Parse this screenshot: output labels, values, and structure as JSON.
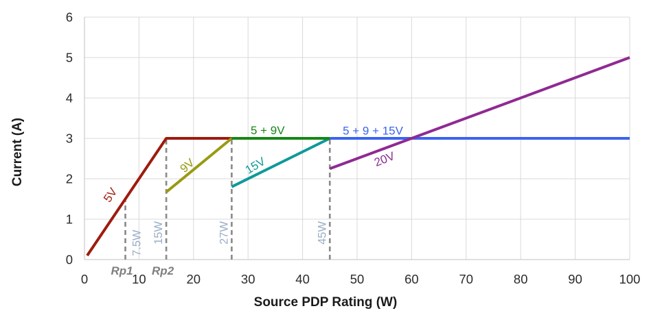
{
  "chart_data": {
    "type": "line",
    "title": "",
    "xlabel": "Source PDP Rating (W)",
    "ylabel": "Current (A)",
    "xlim": [
      0,
      100
    ],
    "ylim": [
      0,
      6
    ],
    "xticks": [
      0,
      10,
      20,
      30,
      40,
      50,
      60,
      70,
      80,
      90,
      100
    ],
    "yticks": [
      0,
      1,
      2,
      3,
      4,
      5,
      6
    ],
    "grid": true,
    "legend_position": "none (inline line labels)",
    "colors": {
      "grid": "#D8D8D8",
      "axis": "#C2C2C2",
      "tick_text": "#2b2b2b",
      "guide": "#8C8C8C",
      "guide_label": "#9AAEC6",
      "rp_label": "#7F7F7F",
      "v5": "#9E1B0E",
      "v9": "#9A9913",
      "v15": "#0F9999",
      "v20": "#8F2A93",
      "v5_9": "#168616",
      "v5_9_15": "#3A64F0"
    },
    "series": [
      {
        "name": "5V",
        "color": "#9E1B0E",
        "points": [
          [
            0.5,
            0.1
          ],
          [
            15,
            3
          ],
          [
            27,
            3
          ]
        ]
      },
      {
        "name": "9V",
        "color": "#9A9913",
        "points": [
          [
            15,
            1.67
          ],
          [
            27,
            3
          ]
        ]
      },
      {
        "name": "15V",
        "color": "#0F9999",
        "points": [
          [
            27,
            1.8
          ],
          [
            45,
            3
          ]
        ]
      },
      {
        "name": "5 + 9V",
        "color": "#168616",
        "points": [
          [
            27,
            3
          ],
          [
            45,
            3
          ]
        ]
      },
      {
        "name": "5 + 9 + 15V",
        "color": "#3A64F0",
        "points": [
          [
            45,
            3
          ],
          [
            100,
            3
          ]
        ]
      },
      {
        "name": "20V",
        "color": "#8F2A93",
        "points": [
          [
            45,
            2.25
          ],
          [
            100,
            5
          ]
        ]
      }
    ],
    "annotations": [
      {
        "text": "5V",
        "x": 4.7,
        "y": 1.6,
        "rotate": -56,
        "color": "#9E1B0E"
      },
      {
        "text": "9V",
        "x": 18.8,
        "y": 2.33,
        "rotate": -41,
        "color": "#9A9913"
      },
      {
        "text": "15V",
        "x": 31.3,
        "y": 2.33,
        "rotate": -31,
        "color": "#0F9999"
      },
      {
        "text": "20V",
        "x": 55.0,
        "y": 2.49,
        "rotate": -22,
        "color": "#8F2A93"
      },
      {
        "text": "5 + 9V",
        "x": 33.6,
        "y": 3.2,
        "rotate": 0,
        "color": "#168616"
      },
      {
        "text": "5 + 9 + 15V",
        "x": 52.9,
        "y": 3.19,
        "rotate": 0,
        "color": "#3A64F0"
      }
    ],
    "guides": [
      {
        "label": "7.5W",
        "x": 7.5,
        "y_top": 1.5,
        "axis_label": "Rp1",
        "label_side": "right"
      },
      {
        "label": "15W",
        "x": 15,
        "y_top": 3,
        "axis_label": "Rp2",
        "label_side": "left"
      },
      {
        "label": "27W",
        "x": 27,
        "y_top": 3,
        "axis_label": "",
        "label_side": "left"
      },
      {
        "label": "45W",
        "x": 45,
        "y_top": 3,
        "axis_label": "",
        "label_side": "left"
      }
    ]
  }
}
